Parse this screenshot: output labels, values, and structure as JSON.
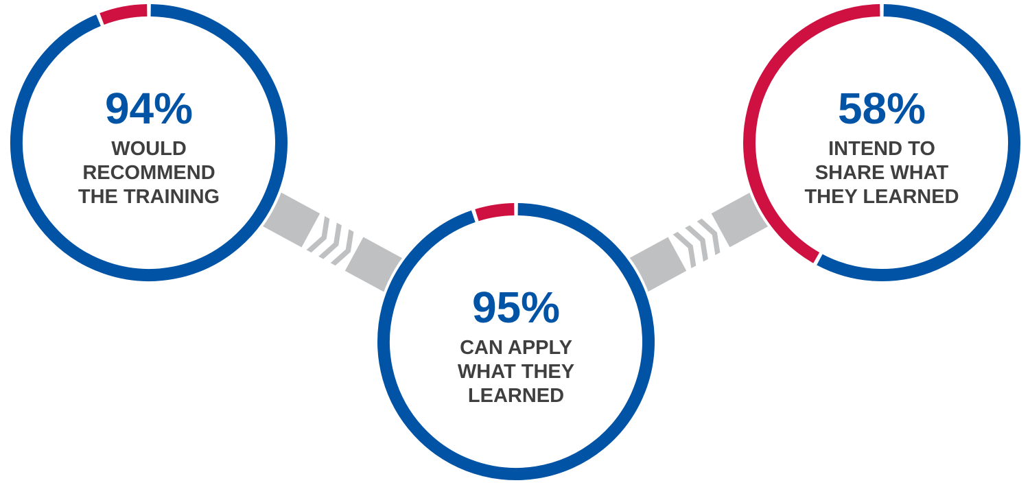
{
  "chart_data": {
    "type": "pie",
    "title": "",
    "items": [
      {
        "value": 94,
        "value_label": "94%",
        "label_lines": [
          "WOULD",
          "RECOMMEND",
          "THE TRAINING"
        ]
      },
      {
        "value": 95,
        "value_label": "95%",
        "label_lines": [
          "CAN APPLY",
          "WHAT THEY",
          "LEARNED"
        ]
      },
      {
        "value": 58,
        "value_label": "58%",
        "label_lines": [
          "INTEND TO",
          "SHARE WHAT",
          "THEY LEARNED"
        ]
      }
    ],
    "colors": {
      "positive": "#0153A5",
      "remainder": "#CE1141",
      "value_text": "#0153A5",
      "label_text": "#3F3F3F",
      "connector": "#BFC0C2"
    }
  }
}
